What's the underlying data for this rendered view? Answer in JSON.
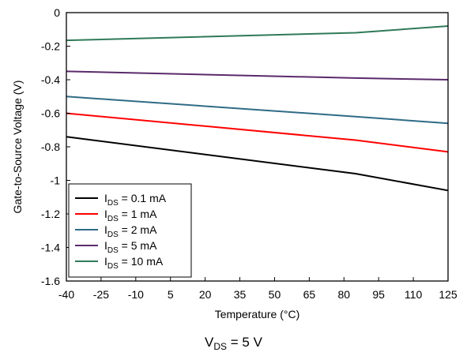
{
  "chart_data": {
    "type": "line",
    "xlabel": "Temperature (°C)",
    "ylabel": "Gate-to-Source Voltage (V)",
    "x_ticks": [
      "-40",
      "-25",
      "-10",
      "5",
      "20",
      "35",
      "50",
      "65",
      "80",
      "95",
      "110",
      "125"
    ],
    "y_ticks": [
      "0",
      "-0.2",
      "-0.4",
      "-0.6",
      "-0.8",
      "-1",
      "-1.2",
      "-1.4",
      "-1.6"
    ],
    "xlim": [
      -40,
      125
    ],
    "ylim": [
      -1.6,
      0
    ],
    "grid": false,
    "legend_position": "bottom-left",
    "series": [
      {
        "name_main": "I",
        "name_sub": "DS",
        "name_rest": " = 0.1 mA",
        "color": "#000000",
        "x": [
          -40,
          85,
          125
        ],
        "y": [
          -0.74,
          -0.96,
          -1.06
        ]
      },
      {
        "name_main": "I",
        "name_sub": "DS",
        "name_rest": " = 1 mA",
        "color": "#ff0000",
        "x": [
          -40,
          85,
          125
        ],
        "y": [
          -0.6,
          -0.76,
          -0.83
        ]
      },
      {
        "name_main": "I",
        "name_sub": "DS",
        "name_rest": " = 2 mA",
        "color": "#2f6b86",
        "x": [
          -40,
          85,
          125
        ],
        "y": [
          -0.5,
          -0.62,
          -0.66
        ]
      },
      {
        "name_main": "I",
        "name_sub": "DS",
        "name_rest": " = 5 mA",
        "color": "#5b2a6b",
        "x": [
          -40,
          85,
          125
        ],
        "y": [
          -0.35,
          -0.39,
          -0.4
        ]
      },
      {
        "name_main": "I",
        "name_sub": "DS",
        "name_rest": " = 10 mA",
        "color": "#2f7a57",
        "x": [
          -40,
          85,
          125
        ],
        "y": [
          -0.165,
          -0.12,
          -0.08
        ]
      }
    ]
  },
  "caption": {
    "main": "V",
    "sub": "DS",
    "rest": " = 5 V"
  }
}
